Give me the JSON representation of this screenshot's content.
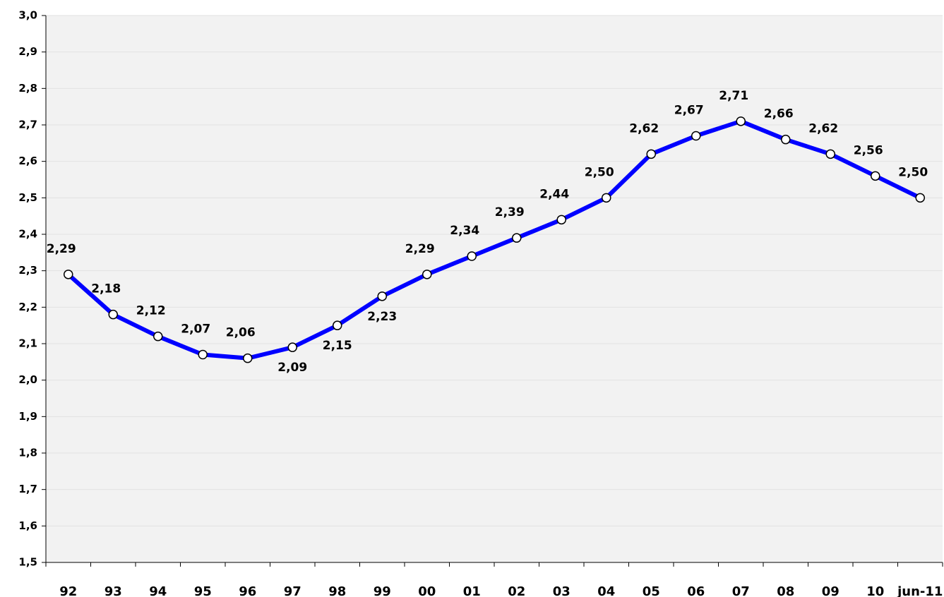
{
  "chart_data": {
    "type": "line",
    "categories": [
      "92",
      "93",
      "94",
      "95",
      "96",
      "97",
      "98",
      "99",
      "00",
      "01",
      "02",
      "03",
      "04",
      "05",
      "06",
      "07",
      "08",
      "09",
      "10",
      "jun-11"
    ],
    "series": [
      {
        "color": "#0000ff",
        "values": [
          2.29,
          2.18,
          2.12,
          2.07,
          2.06,
          2.09,
          2.15,
          2.23,
          2.29,
          2.34,
          2.39,
          2.44,
          2.5,
          2.62,
          2.67,
          2.71,
          2.66,
          2.62,
          2.56,
          2.5
        ],
        "value_labels": [
          "2,29",
          "2,18",
          "2,12",
          "2,07",
          "2,06",
          "2,09",
          "2,15",
          "2,23",
          "2,29",
          "2,34",
          "2,39",
          "2,44",
          "2,50",
          "2,62",
          "2,67",
          "2,71",
          "2,66",
          "2,62",
          "2,56",
          "2,50"
        ]
      }
    ],
    "ylim": [
      1.5,
      3.0
    ],
    "yticks": [
      {
        "value": 1.5,
        "label": "1,5"
      },
      {
        "value": 1.6,
        "label": "1,6"
      },
      {
        "value": 1.7,
        "label": "1,7"
      },
      {
        "value": 1.8,
        "label": "1,8"
      },
      {
        "value": 1.9,
        "label": "1,9"
      },
      {
        "value": 2.0,
        "label": "2,0"
      },
      {
        "value": 2.1,
        "label": "2,1"
      },
      {
        "value": 2.2,
        "label": "2,2"
      },
      {
        "value": 2.3,
        "label": "2,3"
      },
      {
        "value": 2.4,
        "label": "2,4"
      },
      {
        "value": 2.5,
        "label": "2,5"
      },
      {
        "value": 2.6,
        "label": "2,6"
      },
      {
        "value": 2.7,
        "label": "2,7"
      },
      {
        "value": 2.8,
        "label": "2,8"
      },
      {
        "value": 2.9,
        "label": "2,9"
      },
      {
        "value": 3.0,
        "label": "3,0"
      }
    ],
    "grid": true
  }
}
